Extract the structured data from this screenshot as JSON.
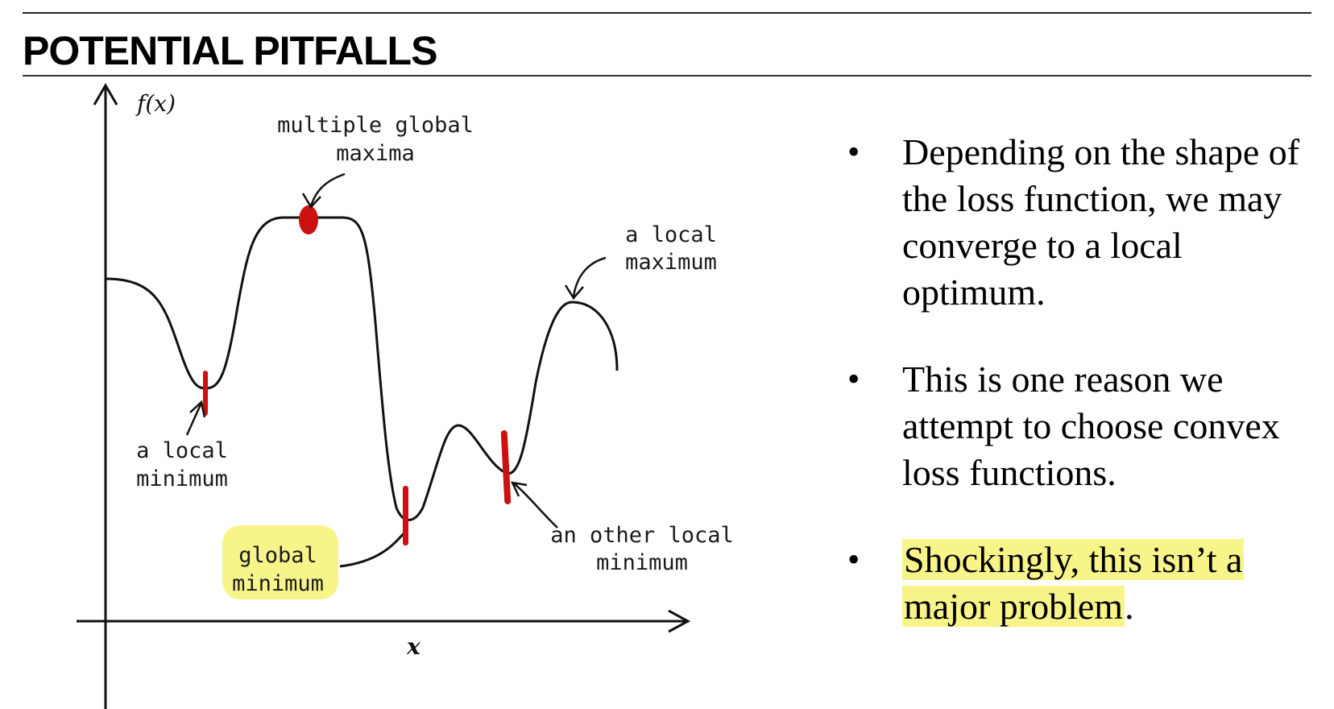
{
  "slide": {
    "title": "POTENTIAL PITFALLS"
  },
  "diagram": {
    "y_axis_label": "f(x)",
    "x_axis_label": "x",
    "annotations": {
      "global_max_line1": "multiple global",
      "global_max_line2": "maxima",
      "local_max_line1": "a local",
      "local_max_line2": "maximum",
      "local_min_line1": "a local",
      "local_min_line2": "minimum",
      "global_min_line1": "global",
      "global_min_line2": "minimum",
      "other_min_line1": "an other local",
      "other_min_line2": "minimum"
    },
    "colors": {
      "curve": "#111111",
      "marker": "#cc1111",
      "highlight": "#f7f48a"
    }
  },
  "bullets": {
    "b1": "Depending on the shape of the loss function, we may converge to a local optimum.",
    "b2": "This is one reason we attempt to choose convex loss functions.",
    "b3_highlight": "Shockingly, this isn’t a major problem",
    "b3_tail": "."
  }
}
